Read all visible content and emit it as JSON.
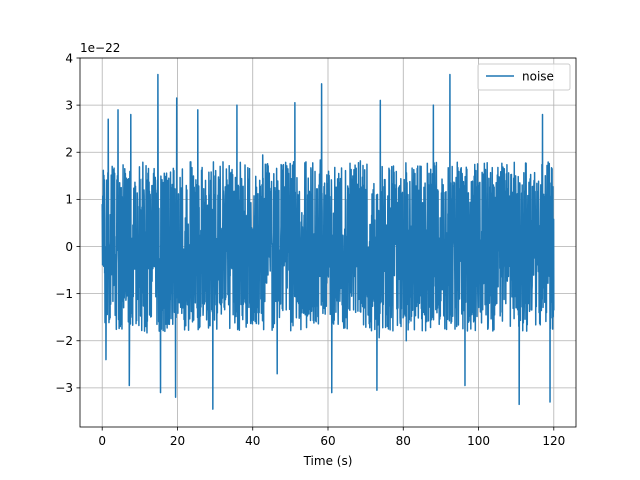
{
  "chart_data": {
    "type": "line",
    "title": "",
    "xlabel": "Time (s)",
    "ylabel": "",
    "y_offset_label": "1e−22",
    "y_scale": 1e-22,
    "xlim": [
      -5.9,
      125.9
    ],
    "ylim": [
      -3.83,
      4.0
    ],
    "x_ticks": [
      0,
      20,
      40,
      60,
      80,
      100,
      120
    ],
    "x_tick_labels": [
      "0",
      "20",
      "40",
      "60",
      "80",
      "100",
      "120"
    ],
    "y_ticks": [
      -3,
      -2,
      -1,
      0,
      1,
      2,
      3,
      4
    ],
    "y_tick_labels": [
      "−3",
      "−2",
      "−1",
      "0",
      "1",
      "2",
      "3",
      "4"
    ],
    "grid": true,
    "legend_position": "top-right",
    "series": [
      {
        "name": "noise",
        "color": "#1f77b4",
        "x_range": [
          0,
          120
        ],
        "typical_amplitude": 1.7,
        "envelope_peaks": [
          {
            "x": 1.6,
            "y": 2.7
          },
          {
            "x": 4.2,
            "y": 2.9
          },
          {
            "x": 7.6,
            "y": 2.8
          },
          {
            "x": 14.8,
            "y": 3.65
          },
          {
            "x": 19.8,
            "y": 3.15
          },
          {
            "x": 25.4,
            "y": 2.9
          },
          {
            "x": 35.8,
            "y": 3.0
          },
          {
            "x": 51.2,
            "y": 3.05
          },
          {
            "x": 58.3,
            "y": 3.45
          },
          {
            "x": 73.9,
            "y": 3.1
          },
          {
            "x": 88.0,
            "y": 3.0
          },
          {
            "x": 92.4,
            "y": 3.65
          },
          {
            "x": 117.0,
            "y": 2.8
          },
          {
            "x": 1.0,
            "y": -2.4
          },
          {
            "x": 7.2,
            "y": -2.95
          },
          {
            "x": 15.5,
            "y": -3.1
          },
          {
            "x": 19.5,
            "y": -3.2
          },
          {
            "x": 29.4,
            "y": -3.45
          },
          {
            "x": 46.5,
            "y": -2.7
          },
          {
            "x": 61.0,
            "y": -3.1
          },
          {
            "x": 73.0,
            "y": -3.05
          },
          {
            "x": 96.4,
            "y": -2.95
          },
          {
            "x": 110.8,
            "y": -3.35
          },
          {
            "x": 119.0,
            "y": -3.3
          }
        ]
      }
    ]
  }
}
